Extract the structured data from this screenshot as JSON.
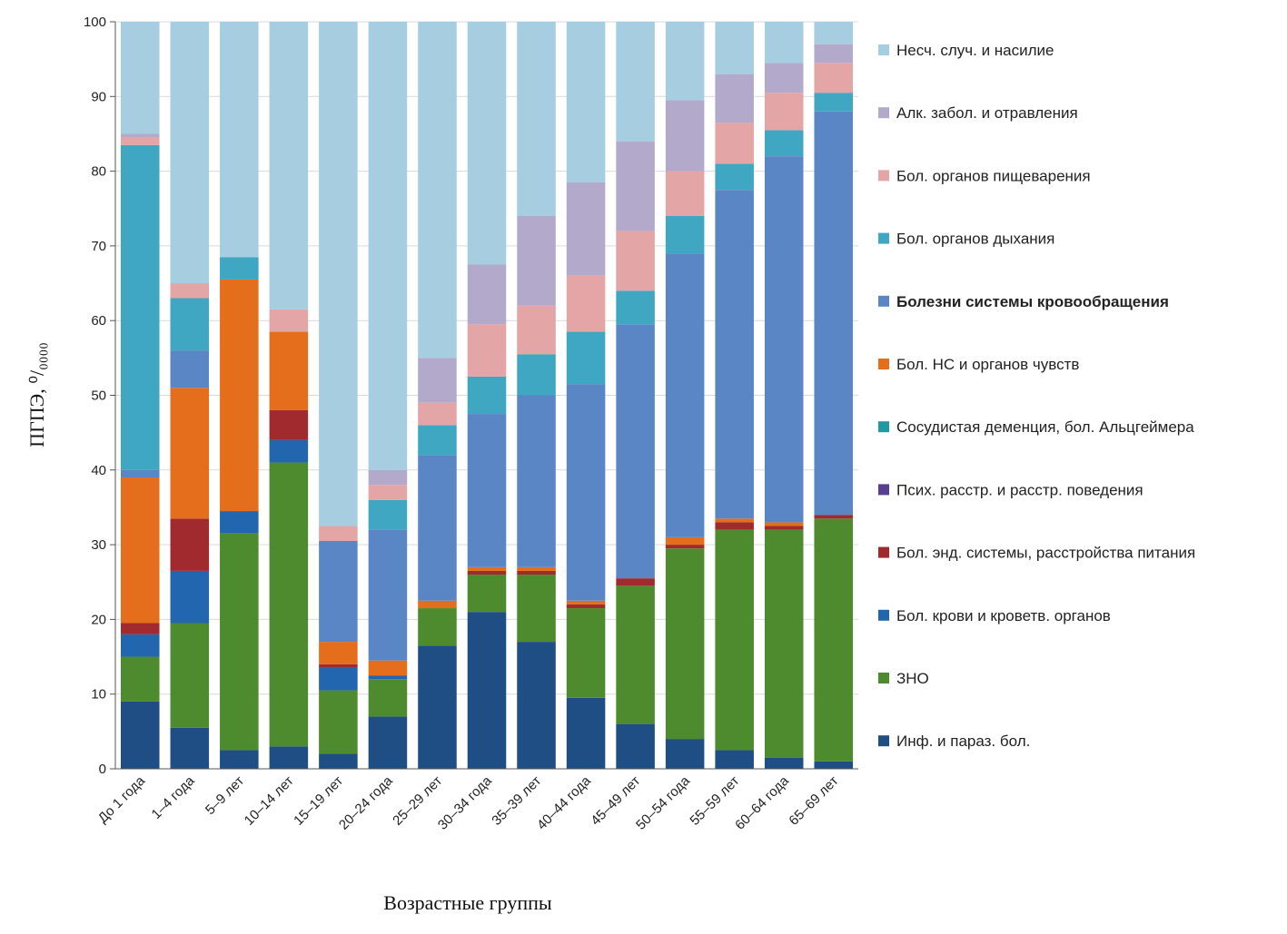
{
  "chart_data": {
    "type": "bar",
    "stacked": true,
    "title": "",
    "xlabel": "Возрастные группы",
    "ylabel": "ПГПЭ, ⁰/₀₀₀₀",
    "ylim": [
      0,
      100
    ],
    "yticks": [
      "0",
      "10",
      "20",
      "30",
      "40",
      "50",
      "60",
      "70",
      "80",
      "90",
      "100"
    ],
    "grid": "horizontal",
    "legend_position": "right",
    "categories": [
      "До 1 года",
      "1–4 года",
      "5–9 лет",
      "10–14 лет",
      "15–19 лет",
      "20–24 года",
      "25–29 лет",
      "30–34 года",
      "35–39 лет",
      "40–44 года",
      "45–49 лет",
      "50–54 года",
      "55–59 лет",
      "60–64 года",
      "65–69 лет"
    ],
    "series": [
      {
        "name": "Инф. и параз. бол.",
        "color": "#1f4e84",
        "values": [
          9,
          5.5,
          2.5,
          3,
          2,
          7,
          16.5,
          21,
          17,
          9.5,
          6,
          4,
          2.5,
          1.5,
          1
        ]
      },
      {
        "name": "ЗНО",
        "color": "#4e8a2e",
        "values": [
          6,
          14,
          29,
          38,
          8.5,
          5,
          5,
          5,
          9,
          12,
          18.5,
          25.5,
          29.5,
          30.5,
          32.5
        ]
      },
      {
        "name": "Бол. крови и кроветв. органов",
        "color": "#2166ae",
        "values": [
          3,
          7,
          3,
          3,
          3,
          0.5,
          0,
          0,
          0,
          0,
          0,
          0,
          0,
          0,
          0
        ]
      },
      {
        "name": "Бол. энд. системы, расстройства питания",
        "color": "#a12a2f",
        "values": [
          1.5,
          7,
          0,
          4,
          0.5,
          0,
          0,
          0.5,
          0.5,
          0.5,
          1,
          0.5,
          1,
          0.5,
          0.5
        ]
      },
      {
        "name": "Псих. расстр. и расстр. поведения",
        "color": "#5a3f90",
        "values": [
          0,
          0,
          0,
          0,
          0,
          0,
          0,
          0,
          0,
          0,
          0,
          0,
          0,
          0,
          0
        ]
      },
      {
        "name": "Сосудистая деменция, бол. Альцгеймера",
        "color": "#1f9aa0",
        "values": [
          0,
          0,
          0,
          0,
          0,
          0,
          0,
          0,
          0,
          0,
          0,
          0,
          0,
          0,
          0
        ]
      },
      {
        "name": "Бол. НС и органов чувств",
        "color": "#e46e1c",
        "values": [
          19.5,
          17.5,
          31,
          10.5,
          3,
          2,
          1,
          0.5,
          0.5,
          0.5,
          0,
          1,
          0.5,
          0.5,
          0
        ]
      },
      {
        "name": "Болезни системы кровообращения",
        "color": "#5a86c5",
        "values": [
          1,
          5,
          0,
          0,
          13.5,
          17.5,
          19.5,
          20.5,
          23,
          29,
          34,
          38,
          44,
          49,
          54
        ]
      },
      {
        "name": "Бол. органов дыхания",
        "color": "#3fa7c1",
        "values": [
          43.5,
          7,
          3,
          0,
          0,
          4,
          4,
          5,
          5.5,
          7,
          4.5,
          5,
          3.5,
          3.5,
          2.5
        ]
      },
      {
        "name": "Бол. органов пищеварения",
        "color": "#e3a5a6",
        "values": [
          1,
          2,
          0,
          3,
          2,
          2,
          3,
          7,
          6.5,
          7.5,
          8,
          6,
          5.5,
          5,
          4
        ]
      },
      {
        "name": "Алк. забол. и отравления",
        "color": "#b3a9cb",
        "values": [
          0.5,
          0,
          0,
          0,
          0,
          2,
          6,
          8,
          12,
          12.5,
          12,
          9.5,
          6.5,
          4,
          2.5
        ]
      },
      {
        "name": "Несч. случ. и насилие",
        "color": "#a7cde0",
        "values": [
          15,
          35,
          31.5,
          38.5,
          67.5,
          60,
          45,
          32.5,
          26,
          21.5,
          16,
          10.5,
          7,
          5.5,
          3.5
        ]
      }
    ],
    "legend_order": [
      "Несч. случ. и насилие",
      "Алк. забол. и отравления",
      "Бол. органов пищеварения",
      "Бол. органов дыхания",
      "Болезни системы кровообращения",
      "Бол. НС и органов чувств",
      "Сосудистая деменция, бол. Альцгеймера",
      "Псих. расстр. и расстр. поведения",
      "Бол. энд. системы, расстройства питания",
      "Бол. крови и кроветв. органов",
      "ЗНО",
      "Инф. и параз. бол."
    ],
    "legend_bold": [
      "Болезни системы кровообращения"
    ]
  }
}
